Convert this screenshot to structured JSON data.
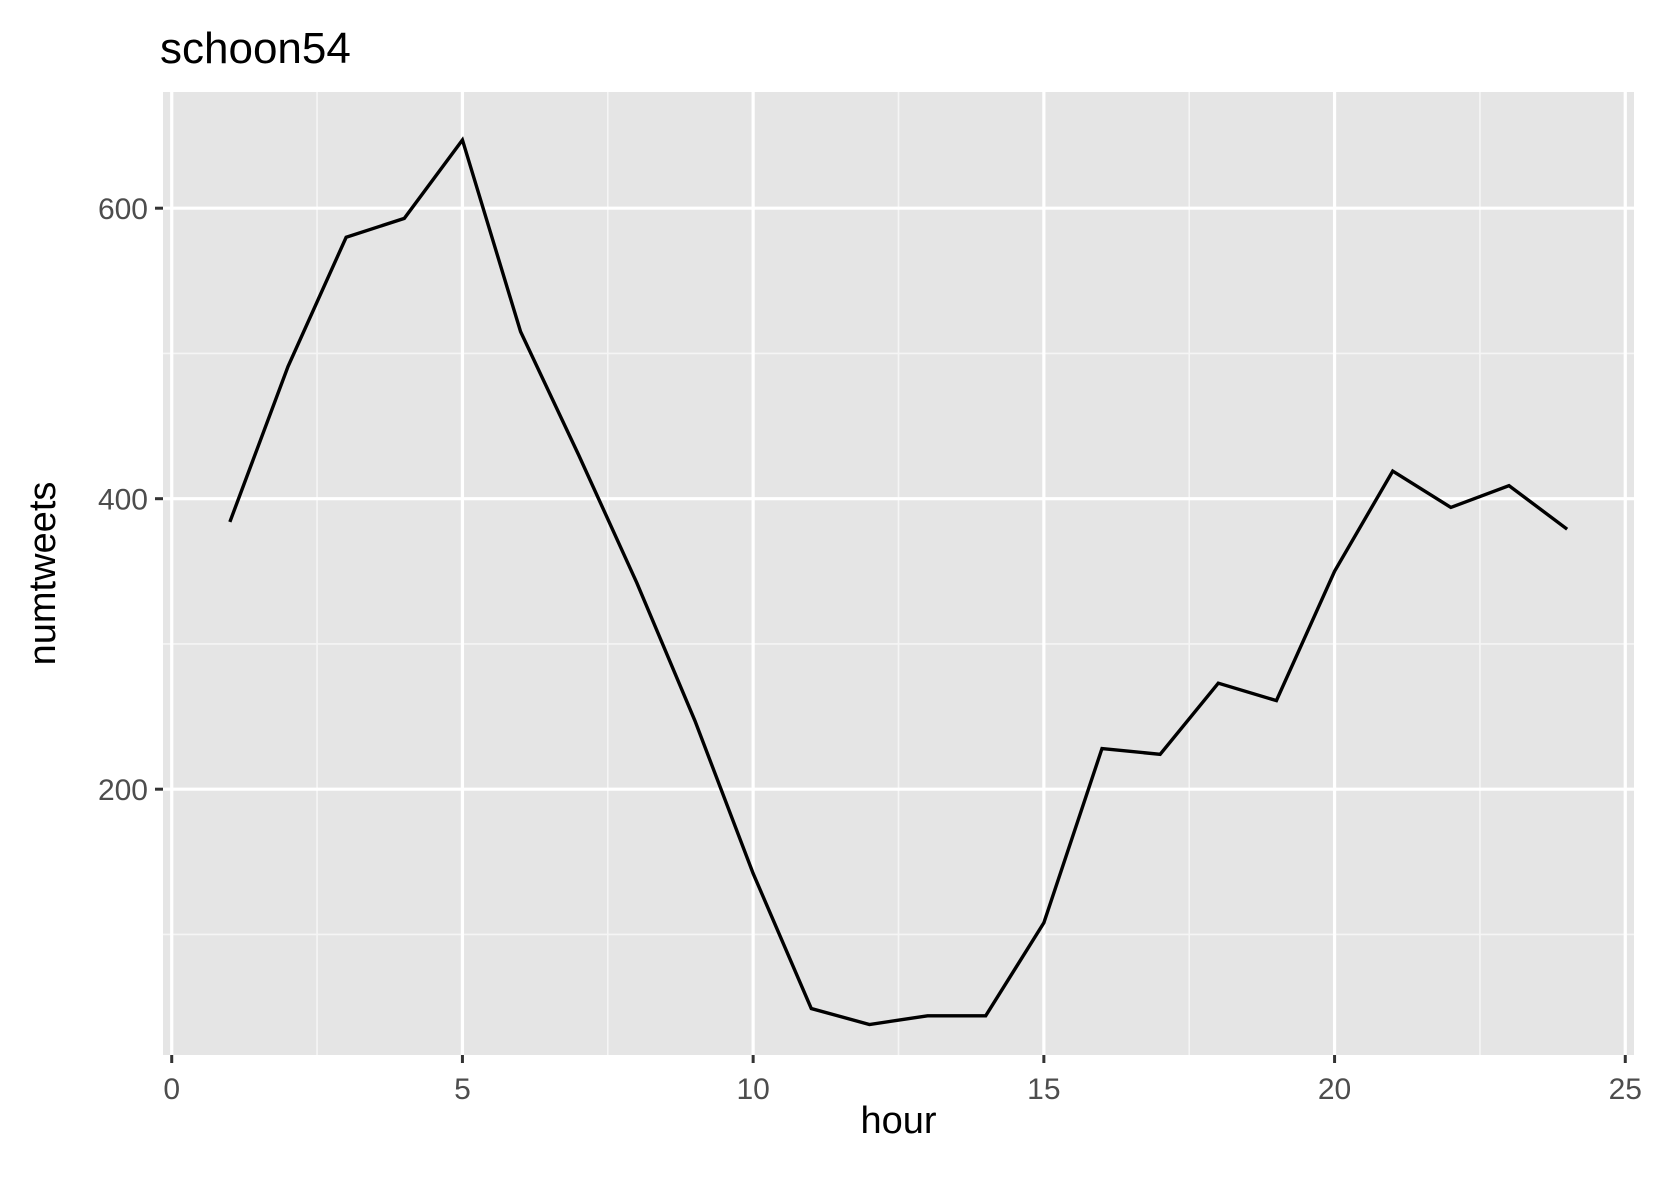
{
  "chart_data": {
    "type": "line",
    "title": "schoon54",
    "xlabel": "hour",
    "ylabel": "numtweets",
    "xlim": [
      -0.15,
      25.15
    ],
    "ylim": [
      17,
      680
    ],
    "x_major_ticks": [
      0,
      5,
      10,
      15,
      20,
      25
    ],
    "x_minor_ticks": [
      2.5,
      7.5,
      12.5,
      17.5,
      22.5
    ],
    "y_major_ticks": [
      200,
      400,
      600
    ],
    "y_minor_ticks": [
      100,
      300,
      500
    ],
    "x_tick_labels": [
      "0",
      "5",
      "10",
      "15",
      "20",
      "25"
    ],
    "y_tick_labels": [
      "200",
      "400",
      "600"
    ],
    "grid": true,
    "legend": "none",
    "colors": {
      "panel_background": "#e5e5e5",
      "grid_major": "#ffffff",
      "grid_minor": "#f5f5f5",
      "line": "#000000",
      "tick_label": "#4d4d4d",
      "tick_mark": "#333333"
    },
    "series": [
      {
        "x": [
          1,
          2,
          3,
          4,
          5,
          6,
          7,
          8,
          9,
          10,
          11,
          12,
          13,
          14,
          15,
          16,
          17,
          18,
          19,
          20,
          21,
          22,
          23,
          24
        ],
        "values": [
          384,
          491,
          580,
          593,
          647,
          515,
          430,
          342,
          247,
          142,
          49,
          38,
          44,
          44,
          108,
          228,
          224,
          273,
          261,
          350,
          419,
          394,
          409,
          379
        ]
      }
    ]
  }
}
